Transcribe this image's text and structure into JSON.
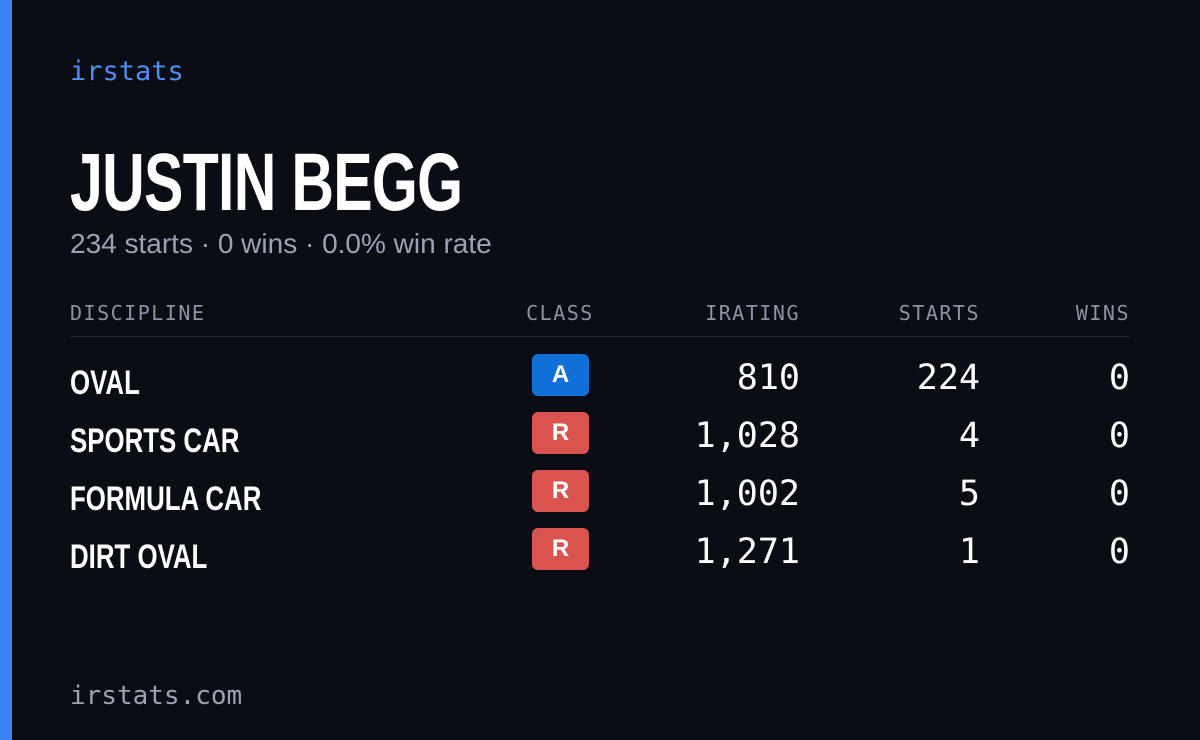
{
  "brand": "irstats",
  "name": "JUSTIN BEGG",
  "summary": "234 starts · 0 wins · 0.0% win rate",
  "table": {
    "headers": [
      "DISCIPLINE",
      "CLASS",
      "IRATING",
      "STARTS",
      "WINS"
    ],
    "rows": [
      {
        "discipline": "OVAL",
        "class": "A",
        "class_color": "#1170d8",
        "irating": "810",
        "starts": "224",
        "wins": "0"
      },
      {
        "discipline": "SPORTS CAR",
        "class": "R",
        "class_color": "#d9534f",
        "irating": "1,028",
        "starts": "4",
        "wins": "0"
      },
      {
        "discipline": "FORMULA CAR",
        "class": "R",
        "class_color": "#d9534f",
        "irating": "1,002",
        "starts": "5",
        "wins": "0"
      },
      {
        "discipline": "DIRT OVAL",
        "class": "R",
        "class_color": "#d9534f",
        "irating": "1,271",
        "starts": "1",
        "wins": "0"
      }
    ]
  },
  "footer": "irstats.com"
}
